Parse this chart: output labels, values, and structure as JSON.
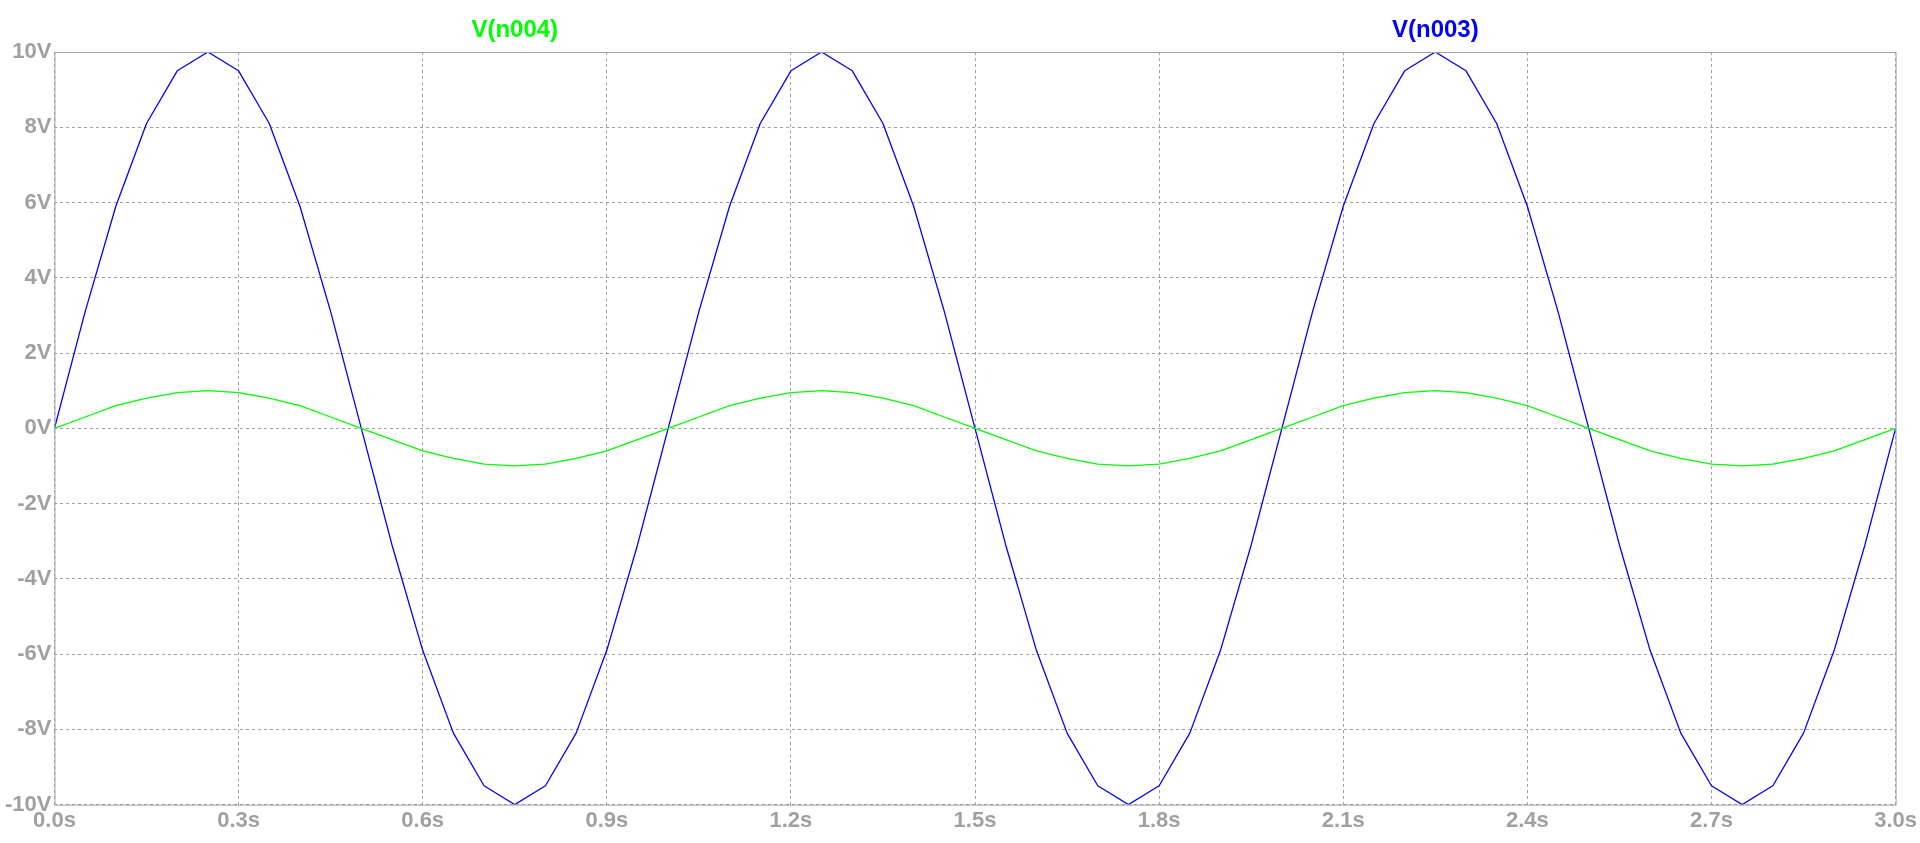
{
  "chart_data": {
    "type": "line",
    "x": [
      0,
      0.05,
      0.1,
      0.15,
      0.2,
      0.25,
      0.3,
      0.35,
      0.4,
      0.45,
      0.5,
      0.55,
      0.6,
      0.65,
      0.7,
      0.75,
      0.8,
      0.85,
      0.9,
      0.95,
      1,
      1.05,
      1.1,
      1.15,
      1.2,
      1.25,
      1.3,
      1.35,
      1.4,
      1.45,
      1.5,
      1.55,
      1.6,
      1.65,
      1.7,
      1.75,
      1.8,
      1.85,
      1.9,
      1.95,
      2,
      2.05,
      2.1,
      2.15,
      2.2,
      2.25,
      2.3,
      2.35,
      2.4,
      2.45,
      2.5,
      2.55,
      2.6,
      2.65,
      2.7,
      2.75,
      2.8,
      2.85,
      2.9,
      2.95,
      3
    ],
    "series": [
      {
        "name": "V(n004)",
        "color": "#00ff00",
        "values": [
          0,
          0.3,
          0.6,
          0.8,
          0.95,
          1,
          0.95,
          0.8,
          0.6,
          0.3,
          0,
          -0.3,
          -0.6,
          -0.8,
          -0.95,
          -1,
          -0.95,
          -0.8,
          -0.6,
          -0.3,
          0,
          0.3,
          0.6,
          0.8,
          0.95,
          1,
          0.95,
          0.8,
          0.6,
          0.3,
          0,
          -0.3,
          -0.6,
          -0.8,
          -0.95,
          -1,
          -0.95,
          -0.8,
          -0.6,
          -0.3,
          0,
          0.3,
          0.6,
          0.8,
          0.95,
          1,
          0.95,
          0.8,
          0.6,
          0.3,
          0,
          -0.3,
          -0.6,
          -0.8,
          -0.95,
          -1,
          -0.95,
          -0.8,
          -0.6,
          -0.3,
          0
        ]
      },
      {
        "name": "V(n003)",
        "color": "#0000ff",
        "values": [
          0,
          3.1,
          5.9,
          8.1,
          9.5,
          10,
          9.5,
          8.1,
          5.9,
          3.1,
          0,
          -3.1,
          -5.9,
          -8.1,
          -9.5,
          -10,
          -9.5,
          -8.1,
          -5.9,
          -3.1,
          0,
          3.1,
          5.9,
          8.1,
          9.5,
          10,
          9.5,
          8.1,
          5.9,
          3.1,
          0,
          -3.1,
          -5.9,
          -8.1,
          -9.5,
          -10,
          -9.5,
          -8.1,
          -5.9,
          -3.1,
          0,
          3.1,
          5.9,
          8.1,
          9.5,
          10,
          9.5,
          8.1,
          5.9,
          3.1,
          0,
          -3.1,
          -5.9,
          -8.1,
          -9.5,
          -10,
          -9.5,
          -8.1,
          -5.9,
          -3.1,
          0
        ]
      }
    ],
    "xlim": [
      0,
      3
    ],
    "xticks": [
      {
        "value": 0,
        "label": "0.0s"
      },
      {
        "value": 0.3,
        "label": "0.3s"
      },
      {
        "value": 0.6,
        "label": "0.6s"
      },
      {
        "value": 0.9,
        "label": "0.9s"
      },
      {
        "value": 1.2,
        "label": "1.2s"
      },
      {
        "value": 1.5,
        "label": "1.5s"
      },
      {
        "value": 1.8,
        "label": "1.8s"
      },
      {
        "value": 2.1,
        "label": "2.1s"
      },
      {
        "value": 2.4,
        "label": "2.4s"
      },
      {
        "value": 2.7,
        "label": "2.7s"
      },
      {
        "value": 3,
        "label": "3.0s"
      }
    ],
    "ylim": [
      -10,
      10
    ],
    "yticks": [
      {
        "value": -10,
        "label": "-10V"
      },
      {
        "value": -8,
        "label": "-8V"
      },
      {
        "value": -6,
        "label": "-6V"
      },
      {
        "value": -4,
        "label": "-4V"
      },
      {
        "value": -2,
        "label": "-2V"
      },
      {
        "value": 0,
        "label": "0V"
      },
      {
        "value": 2,
        "label": "2V"
      },
      {
        "value": 4,
        "label": "4V"
      },
      {
        "value": 6,
        "label": "6V"
      },
      {
        "value": 8,
        "label": "8V"
      },
      {
        "value": 10,
        "label": "10V"
      }
    ],
    "grid": true,
    "legend": "top",
    "marker": "none",
    "line_style": "solid"
  }
}
